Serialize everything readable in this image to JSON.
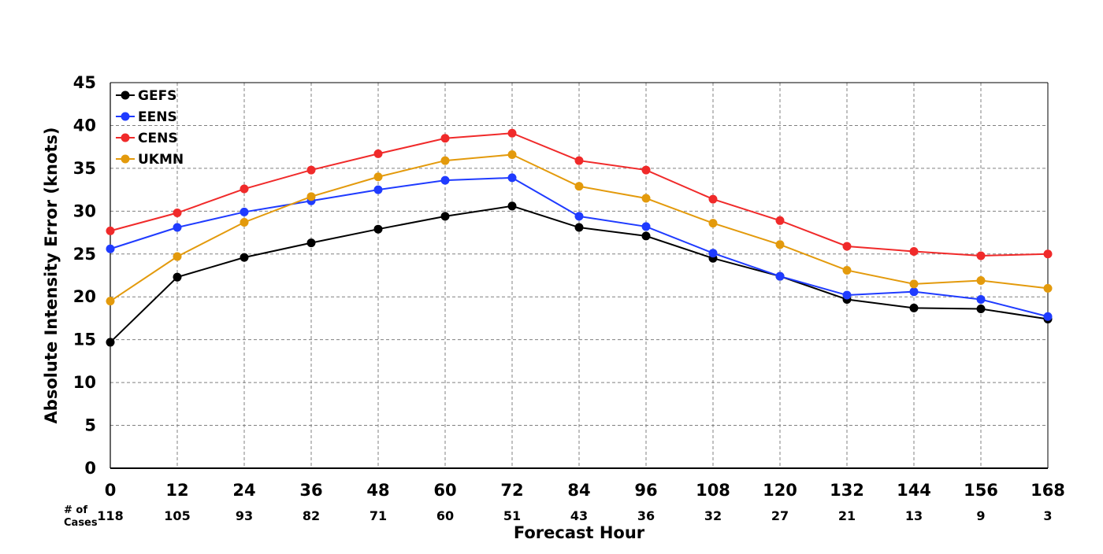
{
  "chart_data": {
    "type": "line",
    "xlabel": "Forecast Hour",
    "ylabel": "Absolute Intensity Error (knots)",
    "x": [
      0,
      12,
      24,
      36,
      48,
      60,
      72,
      84,
      96,
      108,
      120,
      132,
      144,
      156,
      168
    ],
    "xlim": [
      0,
      168
    ],
    "ylim": [
      0,
      45
    ],
    "yticks": [
      0,
      5,
      10,
      15,
      20,
      25,
      30,
      35,
      40,
      45
    ],
    "grid": true,
    "legend_position": "top-left",
    "cases_label_line1": "# of",
    "cases_label_line2": "Cases",
    "cases": [
      118,
      105,
      93,
      82,
      71,
      60,
      51,
      43,
      36,
      32,
      27,
      21,
      13,
      9,
      3
    ],
    "series": [
      {
        "name": "GEFS",
        "color": "#000000",
        "values": [
          14.7,
          22.3,
          24.6,
          26.3,
          27.9,
          29.4,
          30.6,
          28.1,
          27.1,
          24.5,
          22.4,
          19.7,
          18.7,
          18.6,
          17.4
        ]
      },
      {
        "name": "EENS",
        "color": "#1f3bff",
        "values": [
          25.6,
          28.1,
          29.9,
          31.2,
          32.5,
          33.6,
          33.9,
          29.4,
          28.2,
          25.1,
          22.4,
          20.2,
          20.6,
          19.7,
          17.7
        ]
      },
      {
        "name": "CENS",
        "color": "#f02a2a",
        "values": [
          27.7,
          29.8,
          32.6,
          34.8,
          36.7,
          38.5,
          39.1,
          35.9,
          34.8,
          31.4,
          28.9,
          25.9,
          25.3,
          24.8,
          25.0
        ]
      },
      {
        "name": "UKMN",
        "color": "#e39a0c",
        "values": [
          19.5,
          24.7,
          28.7,
          31.7,
          34.0,
          35.9,
          36.6,
          32.9,
          31.5,
          28.6,
          26.1,
          23.1,
          21.5,
          21.9,
          21.0
        ]
      }
    ]
  }
}
